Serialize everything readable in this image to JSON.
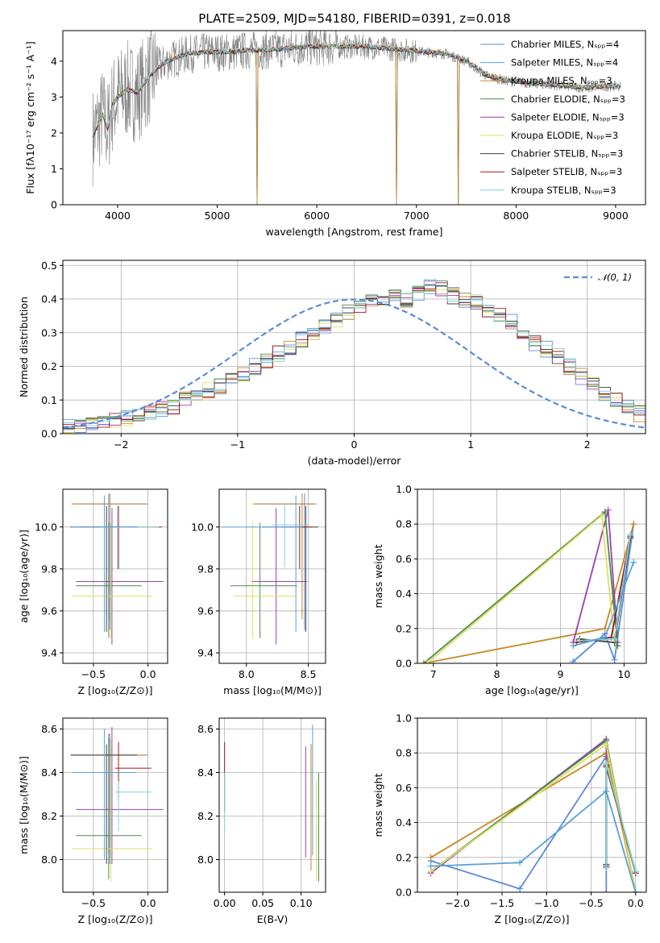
{
  "figure_title": "PLATE=2509, MJD=54180, FIBERID=0391, z=0.018",
  "palette": [
    "#5b8bd8",
    "#5aa0d8",
    "#c88a2a",
    "#4c8c4c",
    "#9b3fb5",
    "#e0e060",
    "#404040",
    "#a01818",
    "#7fd4d8"
  ],
  "chart_data": [
    {
      "id": "spectrum",
      "type": "line",
      "xlabel": "wavelength [Angstrom, rest frame]",
      "ylabel": "Flux [fλ10⁻¹⁷ erg cm⁻² s⁻¹ A⁻¹]",
      "xlim": [
        3450,
        9300
      ],
      "ylim": [
        0,
        4.85
      ],
      "xticks": [
        "4000",
        "5000",
        "6000",
        "7000",
        "8000",
        "9000"
      ],
      "xtick_values": [
        4000,
        5000,
        6000,
        7000,
        8000,
        9000
      ],
      "yticks": [
        "0",
        "1",
        "2",
        "3",
        "4"
      ],
      "ytick_values": [
        0,
        1,
        2,
        3,
        4
      ],
      "grid": false,
      "legend_position": "top-right",
      "legend": [
        "Chabrier MILES, N_SSP=4",
        "Salpeter MILES, N_SSP=4",
        "Kroupa MILES, N_SSP=3",
        "Chabrier ELODIE, N_SSP=3",
        "Salpeter ELODIE, N_SSP=3",
        "Kroupa ELODIE, N_SSP=3",
        "Chabrier STELIB, N_SSP=3",
        "Salpeter STELIB, N_SSP=3",
        "Kroupa STELIB, N_SSP=3"
      ],
      "legend_display": [
        "Chabrier MILES, Nₛₚₚ=4",
        "Salpeter MILES, Nₛₚₚ=4",
        "Kroupa MILES, Nₛₚₚ=3",
        "Chabrier ELODIE, Nₛₚₚ=3",
        "Salpeter ELODIE, Nₛₚₚ=3",
        "Kroupa ELODIE, Nₛₚₚ=3",
        "Chabrier STELIB, Nₛₚₚ=3",
        "Salpeter STELIB, Nₛₚₚ=3",
        "Kroupa STELIB, Nₛₚₚ=3"
      ],
      "model_curve": {
        "x": [
          3750,
          3800,
          3850,
          3900,
          3950,
          4000,
          4100,
          4200,
          4300,
          4400,
          4500,
          4700,
          4900,
          5100,
          5300,
          5500,
          5700,
          5900,
          6100,
          6300,
          6500,
          6700,
          6900,
          7100,
          7300,
          7500,
          7700,
          7900,
          8100,
          8300,
          8500,
          8700,
          8900,
          9050
        ],
        "y": [
          1.9,
          2.2,
          2.5,
          2.1,
          2.8,
          3.0,
          3.2,
          3.1,
          3.5,
          3.8,
          4.0,
          4.2,
          4.25,
          4.25,
          4.3,
          4.3,
          4.35,
          4.4,
          4.4,
          4.4,
          4.4,
          4.35,
          4.3,
          4.25,
          4.2,
          4.0,
          3.6,
          3.45,
          3.4,
          3.35,
          3.3,
          3.25,
          3.3,
          3.3
        ]
      },
      "dips": [
        5400,
        6800,
        7420
      ]
    },
    {
      "id": "residuals",
      "type": "histogram",
      "xlabel": "(data-model)/error",
      "ylabel": "Normed distribution",
      "xlim": [
        -2.5,
        2.5
      ],
      "ylim": [
        0,
        0.515
      ],
      "xticks": [
        "−2",
        "−1",
        "0",
        "1",
        "2"
      ],
      "xtick_values": [
        -2,
        -1,
        0,
        1,
        2
      ],
      "yticks": [
        "0.0",
        "0.1",
        "0.2",
        "0.3",
        "0.4",
        "0.5"
      ],
      "ytick_values": [
        0,
        0.1,
        0.2,
        0.3,
        0.4,
        0.5
      ],
      "grid": true,
      "legend_position": "top-right",
      "legend": [
        "𝒩(0, 1)"
      ],
      "bin_width": 0.1,
      "bin_start": -2.5,
      "base_values": [
        0.02,
        0.025,
        0.03,
        0.035,
        0.04,
        0.045,
        0.05,
        0.06,
        0.07,
        0.08,
        0.1,
        0.11,
        0.13,
        0.14,
        0.16,
        0.18,
        0.2,
        0.22,
        0.24,
        0.26,
        0.28,
        0.3,
        0.32,
        0.34,
        0.36,
        0.38,
        0.4,
        0.39,
        0.41,
        0.4,
        0.42,
        0.44,
        0.43,
        0.41,
        0.4,
        0.39,
        0.37,
        0.35,
        0.33,
        0.3,
        0.27,
        0.25,
        0.23,
        0.2,
        0.17,
        0.15,
        0.12,
        0.1,
        0.08,
        0.06
      ]
    },
    {
      "id": "age_vs_Z",
      "type": "errorbar",
      "xlabel": "Z [log₁₀(Z/Z⊙)]",
      "ylabel": "age  [log₁₀(age/yr)]",
      "xlim": [
        -0.78,
        0.18
      ],
      "ylim": [
        9.35,
        10.18
      ],
      "xticks": [
        "−0.5",
        "0.0"
      ],
      "xtick_values": [
        -0.5,
        0.0
      ],
      "yticks": [
        "9.4",
        "9.6",
        "9.8",
        "10.0"
      ],
      "ytick_values": [
        9.4,
        9.6,
        9.8,
        10.0
      ],
      "grid": true,
      "points": [
        {
          "x": -0.35,
          "y": 10.11,
          "xerr": [
            0.35,
            0.35
          ],
          "yerr": [
            0.6,
            0.05
          ],
          "c": 0
        },
        {
          "x": -0.36,
          "y": 10.11,
          "xerr": [
            0.34,
            0.34
          ],
          "yerr": [
            0.55,
            0.05
          ],
          "c": 2
        },
        {
          "x": -0.33,
          "y": 9.74,
          "xerr": [
            0.33,
            0.47
          ],
          "yerr": [
            0.3,
            0.35
          ],
          "c": 4
        },
        {
          "x": -0.36,
          "y": 9.72,
          "xerr": [
            0.3,
            0.3
          ],
          "yerr": [
            0.25,
            0.3
          ],
          "c": 3
        },
        {
          "x": -0.34,
          "y": 9.67,
          "xerr": [
            0.36,
            0.38
          ],
          "yerr": [
            0.2,
            0.35
          ],
          "c": 5
        },
        {
          "x": -0.38,
          "y": 10.0,
          "xerr": [
            0.33,
            0.28
          ],
          "yerr": [
            0.5,
            0.1
          ],
          "c": 6
        },
        {
          "x": -0.27,
          "y": 10.0,
          "xerr": [
            0.35,
            0.4
          ],
          "yerr": [
            0.2,
            0.1
          ],
          "c": 7
        },
        {
          "x": -0.28,
          "y": 10.0,
          "xerr": [
            0.15,
            0.38
          ],
          "yerr": [
            0.2,
            0.1
          ],
          "c": 8
        },
        {
          "x": -0.4,
          "y": 10.0,
          "xerr": [
            0.3,
            0.3
          ],
          "yerr": [
            0.5,
            0.15
          ],
          "c": 1
        }
      ]
    },
    {
      "id": "age_vs_mass",
      "type": "errorbar",
      "xlabel": "mass [log₁₀(M/M⊙)]",
      "ylabel": "",
      "xlim": [
        7.78,
        8.64
      ],
      "ylim": [
        9.35,
        10.18
      ],
      "xticks": [
        "8.0",
        "8.5"
      ],
      "xtick_values": [
        8.0,
        8.5
      ],
      "yticks": [
        "9.4",
        "9.6",
        "9.8",
        "10.0"
      ],
      "ytick_values": [
        9.4,
        9.6,
        9.8,
        10.0
      ],
      "grid": true,
      "points": [
        {
          "x": 8.47,
          "y": 10.11,
          "xerr": [
            0.4,
            0.1
          ],
          "yerr": [
            0.6,
            0.05
          ],
          "c": 0
        },
        {
          "x": 8.45,
          "y": 10.11,
          "xerr": [
            0.4,
            0.1
          ],
          "yerr": [
            0.55,
            0.05
          ],
          "c": 2
        },
        {
          "x": 8.24,
          "y": 9.74,
          "xerr": [
            0.2,
            0.25
          ],
          "yerr": [
            0.3,
            0.35
          ],
          "c": 4
        },
        {
          "x": 8.11,
          "y": 9.72,
          "xerr": [
            0.24,
            0.3
          ],
          "yerr": [
            0.25,
            0.3
          ],
          "c": 3
        },
        {
          "x": 8.05,
          "y": 9.67,
          "xerr": [
            0.15,
            0.35
          ],
          "yerr": [
            0.2,
            0.35
          ],
          "c": 5
        },
        {
          "x": 8.48,
          "y": 10.0,
          "xerr": [
            0.35,
            0.1
          ],
          "yerr": [
            0.5,
            0.1
          ],
          "c": 6
        },
        {
          "x": 8.43,
          "y": 10.0,
          "xerr": [
            0.15,
            0.1
          ],
          "yerr": [
            0.2,
            0.1
          ],
          "c": 7
        },
        {
          "x": 8.31,
          "y": 10.01,
          "xerr": [
            0.1,
            0.2
          ],
          "yerr": [
            0.2,
            0.1
          ],
          "c": 8
        },
        {
          "x": 8.4,
          "y": 10.0,
          "xerr": [
            0.6,
            0.05
          ],
          "yerr": [
            0.5,
            0.15
          ],
          "c": 1
        }
      ]
    },
    {
      "id": "weight_vs_age",
      "type": "line",
      "xlabel": "age  [log₁₀(age/yr)]",
      "ylabel": "mass weight",
      "xlim": [
        6.75,
        10.35
      ],
      "ylim": [
        0.0,
        1.0
      ],
      "xticks": [
        "7",
        "8",
        "9",
        "10"
      ],
      "xtick_values": [
        7,
        8,
        9,
        10
      ],
      "yticks": [
        "0.0",
        "0.2",
        "0.4",
        "0.6",
        "0.8",
        "1.0"
      ],
      "ytick_values": [
        0,
        0.2,
        0.4,
        0.6,
        0.8,
        1.0
      ],
      "grid": true,
      "series": [
        {
          "c": 0,
          "x": [
            9.2,
            9.7,
            9.85,
            10.15
          ],
          "y": [
            0.01,
            0.17,
            0.02,
            0.8
          ]
        },
        {
          "c": 2,
          "x": [
            6.85,
            9.7,
            10.15
          ],
          "y": [
            0.0,
            0.2,
            0.8
          ]
        },
        {
          "c": 4,
          "x": [
            9.2,
            9.75,
            9.9
          ],
          "y": [
            0.12,
            0.88,
            0.12
          ]
        },
        {
          "c": 3,
          "x": [
            6.85,
            9.7,
            9.9
          ],
          "y": [
            0.0,
            0.87,
            0.1
          ]
        },
        {
          "c": 5,
          "x": [
            6.9,
            9.65,
            9.85
          ],
          "y": [
            0.0,
            0.85,
            0.12
          ]
        },
        {
          "c": 6,
          "x": [
            9.3,
            9.85,
            10.1
          ],
          "y": [
            0.14,
            0.12,
            0.72
          ]
        },
        {
          "c": 7,
          "x": [
            9.25,
            9.8,
            10.1
          ],
          "y": [
            0.12,
            0.15,
            0.73
          ]
        },
        {
          "c": 8,
          "x": [
            9.3,
            9.85,
            10.1
          ],
          "y": [
            0.13,
            0.14,
            0.74
          ]
        },
        {
          "c": 1,
          "x": [
            9.2,
            9.7,
            10.15
          ],
          "y": [
            0.1,
            0.15,
            0.58
          ]
        }
      ]
    },
    {
      "id": "mass_vs_Z",
      "type": "errorbar",
      "xlabel": "Z [log₁₀(Z/Z⊙)]",
      "ylabel": "mass [log₁₀(M/M⊙)]",
      "xlim": [
        -0.78,
        0.18
      ],
      "ylim": [
        7.85,
        8.65
      ],
      "xticks": [
        "−0.5",
        "0.0"
      ],
      "xtick_values": [
        -0.5,
        0.0
      ],
      "yticks": [
        "8.0",
        "8.2",
        "8.4",
        "8.6"
      ],
      "ytick_values": [
        8.0,
        8.2,
        8.4,
        8.6
      ],
      "grid": true,
      "points": [
        {
          "x": -0.35,
          "y": 8.48,
          "xerr": [
            0.35,
            0.35
          ],
          "yerr": [
            0.5,
            0.1
          ],
          "c": 0
        },
        {
          "x": -0.36,
          "y": 8.48,
          "xerr": [
            0.34,
            0.34
          ],
          "yerr": [
            0.45,
            0.1
          ],
          "c": 2
        },
        {
          "x": -0.33,
          "y": 8.23,
          "xerr": [
            0.33,
            0.47
          ],
          "yerr": [
            0.25,
            0.38
          ],
          "c": 4
        },
        {
          "x": -0.36,
          "y": 8.11,
          "xerr": [
            0.3,
            0.3
          ],
          "yerr": [
            0.2,
            0.45
          ],
          "c": 3
        },
        {
          "x": -0.34,
          "y": 8.05,
          "xerr": [
            0.36,
            0.38
          ],
          "yerr": [
            0.15,
            0.5
          ],
          "c": 5
        },
        {
          "x": -0.38,
          "y": 8.48,
          "xerr": [
            0.33,
            0.28
          ],
          "yerr": [
            0.5,
            0.05
          ],
          "c": 6
        },
        {
          "x": -0.27,
          "y": 8.42,
          "xerr": [
            0.03,
            0.3
          ],
          "yerr": [
            0.15,
            0.12
          ],
          "c": 7
        },
        {
          "x": -0.27,
          "y": 8.31,
          "xerr": [
            0.03,
            0.3
          ],
          "yerr": [
            0.18,
            0.05
          ],
          "c": 8
        },
        {
          "x": -0.4,
          "y": 8.4,
          "xerr": [
            0.3,
            0.3
          ],
          "yerr": [
            0.4,
            0.2
          ],
          "c": 1
        }
      ]
    },
    {
      "id": "mass_vs_EBV",
      "type": "errorbar",
      "xlabel": "E(B-V)",
      "ylabel": "",
      "xlim": [
        -0.007,
        0.132
      ],
      "ylim": [
        7.85,
        8.65
      ],
      "xticks": [
        "0.00",
        "0.05",
        "0.10"
      ],
      "xtick_values": [
        0.0,
        0.05,
        0.1
      ],
      "yticks": [
        "8.0",
        "8.2",
        "8.4",
        "8.6"
      ],
      "ytick_values": [
        8.0,
        8.2,
        8.4,
        8.6
      ],
      "grid": true,
      "points": [
        {
          "x": 0.0,
          "y": 8.42,
          "xerr": [
            0,
            0
          ],
          "yerr": [
            0.2,
            0.12
          ],
          "c": 7
        },
        {
          "x": 0.0,
          "y": 8.3,
          "xerr": [
            0,
            0
          ],
          "yerr": [
            0.18,
            0.1
          ],
          "c": 8
        },
        {
          "x": 0.106,
          "y": 8.26,
          "xerr": [
            0,
            0
          ],
          "yerr": [
            0.25,
            0.26
          ],
          "c": 4
        },
        {
          "x": 0.113,
          "y": 8.25,
          "xerr": [
            0,
            0
          ],
          "yerr": [
            0.3,
            0.28
          ],
          "c": 2
        },
        {
          "x": 0.115,
          "y": 8.3,
          "xerr": [
            0,
            0
          ],
          "yerr": [
            0.28,
            0.32
          ],
          "c": 1
        },
        {
          "x": 0.12,
          "y": 8.15,
          "xerr": [
            0,
            0
          ],
          "yerr": [
            0.25,
            0.22
          ],
          "c": 5
        },
        {
          "x": 0.123,
          "y": 8.1,
          "xerr": [
            0,
            0
          ],
          "yerr": [
            0.2,
            0.3
          ],
          "c": 3
        }
      ]
    },
    {
      "id": "weight_vs_Z",
      "type": "line",
      "xlabel": "Z [log₁₀(Z/Z⊙)]",
      "ylabel": "mass weight",
      "xlim": [
        -2.45,
        0.12
      ],
      "ylim": [
        0.0,
        1.0
      ],
      "xticks": [
        "−2.0",
        "−1.5",
        "−1.0",
        "−0.5",
        "0.0"
      ],
      "xtick_values": [
        -2.0,
        -1.5,
        -1.0,
        -0.5,
        0.0
      ],
      "yticks": [
        "0.0",
        "0.2",
        "0.4",
        "0.6",
        "0.8",
        "1.0"
      ],
      "ytick_values": [
        0,
        0.2,
        0.4,
        0.6,
        0.8,
        1.0
      ],
      "grid": true,
      "series": [
        {
          "c": 0,
          "x": [
            -2.3,
            -1.3,
            -0.33,
            -0.33
          ],
          "y": [
            0.18,
            0.02,
            0.78,
            0.0
          ]
        },
        {
          "c": 2,
          "x": [
            -2.3,
            -0.33,
            0.0
          ],
          "y": [
            0.2,
            0.8,
            0.0
          ]
        },
        {
          "c": 4,
          "x": [
            -2.3,
            -0.33,
            -0.33
          ],
          "y": [
            0.11,
            0.88,
            0.14
          ]
        },
        {
          "c": 3,
          "x": [
            -2.3,
            -0.33,
            0.0
          ],
          "y": [
            0.12,
            0.87,
            0.0
          ]
        },
        {
          "c": 5,
          "x": [
            -2.3,
            -0.33,
            0.0
          ],
          "y": [
            0.12,
            0.85,
            0.0
          ]
        },
        {
          "c": 6,
          "x": [
            -0.33,
            -0.33,
            0.0
          ],
          "y": [
            0.15,
            0.72,
            0.12
          ]
        },
        {
          "c": 7,
          "x": [
            -0.33,
            -0.33,
            0.0
          ],
          "y": [
            0.16,
            0.73,
            0.11
          ]
        },
        {
          "c": 8,
          "x": [
            -0.33,
            -0.33,
            0.0
          ],
          "y": [
            0.14,
            0.74,
            0.12
          ]
        },
        {
          "c": 1,
          "x": [
            -2.3,
            -1.3,
            -0.33,
            0.0
          ],
          "y": [
            0.15,
            0.17,
            0.58,
            0.0
          ]
        }
      ]
    }
  ]
}
